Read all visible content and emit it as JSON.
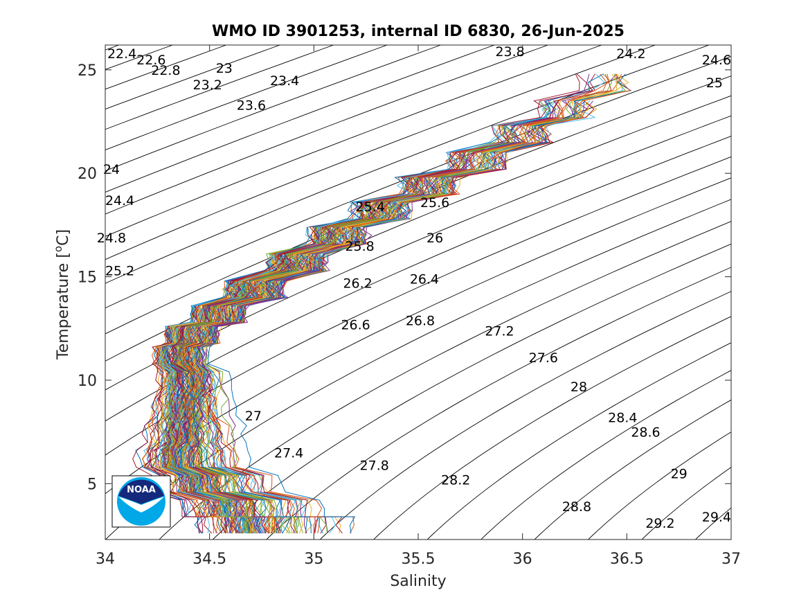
{
  "chart_data": {
    "type": "line",
    "title": "WMO ID 3901253, internal ID 6830, 26-Jun-2025",
    "xlabel": "Salinity",
    "ylabel_prefix": "Temperature [",
    "ylabel_sup": "o",
    "ylabel_suffix": "C]",
    "xlim": [
      34,
      37
    ],
    "ylim": [
      2.3,
      26.2
    ],
    "xticks": [
      34,
      34.5,
      35,
      35.5,
      36,
      36.5,
      37
    ],
    "xtick_labels": [
      "34",
      "34.5",
      "35",
      "35.5",
      "36",
      "36.5",
      "37"
    ],
    "yticks": [
      5,
      10,
      15,
      20,
      25
    ],
    "ytick_labels": [
      "5",
      "10",
      "15",
      "20",
      "25"
    ],
    "grid": false,
    "legend": "none",
    "density_contour_labels": [
      {
        "label": "22.4",
        "s": 34.08,
        "t": 25.8
      },
      {
        "label": "22.6",
        "s": 34.22,
        "t": 25.5
      },
      {
        "label": "22.8",
        "s": 34.29,
        "t": 25.0
      },
      {
        "label": "23",
        "s": 34.57,
        "t": 25.1
      },
      {
        "label": "23.2",
        "s": 34.49,
        "t": 24.3
      },
      {
        "label": "23.4",
        "s": 34.86,
        "t": 24.5
      },
      {
        "label": "23.6",
        "s": 34.7,
        "t": 23.3
      },
      {
        "label": "23.8",
        "s": 35.94,
        "t": 25.9
      },
      {
        "label": "24.2",
        "s": 36.52,
        "t": 25.8
      },
      {
        "label": "24.6",
        "s": 36.93,
        "t": 25.5
      },
      {
        "label": "25",
        "s": 36.92,
        "t": 24.4
      },
      {
        "label": "24",
        "s": 34.03,
        "t": 20.2
      },
      {
        "label": "24.4",
        "s": 34.07,
        "t": 18.7
      },
      {
        "label": "24.8",
        "s": 34.03,
        "t": 16.9
      },
      {
        "label": "25.2",
        "s": 34.07,
        "t": 15.3
      },
      {
        "label": "25.4",
        "s": 35.27,
        "t": 18.4
      },
      {
        "label": "25.6",
        "s": 35.58,
        "t": 18.6
      },
      {
        "label": "25.8",
        "s": 35.22,
        "t": 16.5
      },
      {
        "label": "26",
        "s": 35.58,
        "t": 16.9
      },
      {
        "label": "26.2",
        "s": 35.21,
        "t": 14.7
      },
      {
        "label": "26.4",
        "s": 35.53,
        "t": 14.9
      },
      {
        "label": "26.6",
        "s": 35.2,
        "t": 12.7
      },
      {
        "label": "26.8",
        "s": 35.51,
        "t": 12.9
      },
      {
        "label": "27",
        "s": 34.71,
        "t": 8.3
      },
      {
        "label": "27.2",
        "s": 35.89,
        "t": 12.4
      },
      {
        "label": "27.4",
        "s": 34.88,
        "t": 6.5
      },
      {
        "label": "27.6",
        "s": 36.1,
        "t": 11.1
      },
      {
        "label": "27.8",
        "s": 35.29,
        "t": 5.9
      },
      {
        "label": "28",
        "s": 36.27,
        "t": 9.7
      },
      {
        "label": "28.2",
        "s": 35.68,
        "t": 5.2
      },
      {
        "label": "28.4",
        "s": 36.48,
        "t": 8.2
      },
      {
        "label": "28.6",
        "s": 36.59,
        "t": 7.5
      },
      {
        "label": "28.8",
        "s": 36.26,
        "t": 3.9
      },
      {
        "label": "29",
        "s": 36.75,
        "t": 5.5
      },
      {
        "label": "29.2",
        "s": 36.66,
        "t": 3.1
      },
      {
        "label": "29.4",
        "s": 36.93,
        "t": 3.4
      }
    ],
    "profile_colors": [
      "#0072BD",
      "#D95319",
      "#EDB120",
      "#7E2F8E",
      "#77AC30",
      "#4DBEEE",
      "#A2142F"
    ],
    "profile_count": 180
  },
  "logo": {
    "text": "NOAA",
    "colors": {
      "outer": "#00a8e8",
      "inner": "#14287c",
      "gull": "#ffffff"
    }
  }
}
